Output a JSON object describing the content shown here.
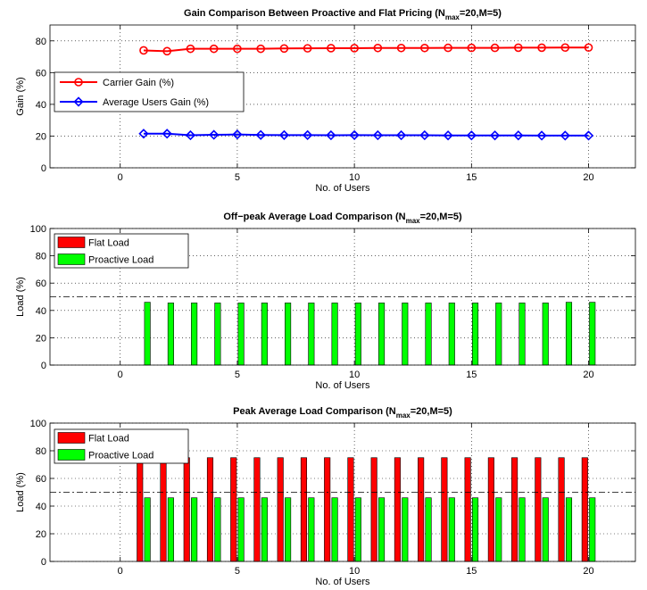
{
  "chart_data": [
    {
      "type": "line",
      "title": "Gain Comparison Between Proactive and Flat Pricing (N",
      "title_sub": "max",
      "title_tail": "=20,M=5)",
      "xlabel": "No. of Users",
      "ylabel": "Gain (%)",
      "xlim": [
        -3,
        22
      ],
      "ylim": [
        0,
        90
      ],
      "xticks": [
        0,
        5,
        10,
        15,
        20
      ],
      "yticks": [
        0,
        20,
        40,
        60,
        80
      ],
      "grid": true,
      "legend_position": "center-left",
      "x": [
        1,
        2,
        3,
        4,
        5,
        6,
        7,
        8,
        9,
        10,
        11,
        12,
        13,
        14,
        15,
        16,
        17,
        18,
        19,
        20
      ],
      "series": [
        {
          "name": "Carrier Gain (%)",
          "color": "#ff0000",
          "marker": "circle",
          "values": [
            74,
            73.5,
            75,
            75,
            75,
            75,
            75.2,
            75.3,
            75.4,
            75.4,
            75.5,
            75.5,
            75.5,
            75.6,
            75.6,
            75.6,
            75.7,
            75.7,
            75.8,
            75.8
          ]
        },
        {
          "name": "Average Users Gain (%)",
          "color": "#0000ff",
          "marker": "diamond",
          "values": [
            21.5,
            21.5,
            20.5,
            20.8,
            21,
            20.7,
            20.6,
            20.6,
            20.5,
            20.6,
            20.5,
            20.5,
            20.5,
            20.4,
            20.4,
            20.4,
            20.4,
            20.3,
            20.3,
            20.3
          ]
        }
      ]
    },
    {
      "type": "bar",
      "title": "Off−peak Average Load Comparison (N",
      "title_sub": "max",
      "title_tail": "=20,M=5)",
      "xlabel": "No. of Users",
      "ylabel": "Load (%)",
      "xlim": [
        -3,
        22
      ],
      "ylim": [
        0,
        100
      ],
      "xticks": [
        0,
        5,
        10,
        15,
        20
      ],
      "yticks": [
        0,
        20,
        40,
        60,
        80,
        100
      ],
      "grid": true,
      "legend_position": "top-left",
      "reference_line": 50,
      "x": [
        1,
        2,
        3,
        4,
        5,
        6,
        7,
        8,
        9,
        10,
        11,
        12,
        13,
        14,
        15,
        16,
        17,
        18,
        19,
        20
      ],
      "series": [
        {
          "name": "Flat Load",
          "color": "#ff0000",
          "values": [
            0,
            0,
            0,
            0,
            0,
            0,
            0,
            0,
            0,
            0,
            0,
            0,
            0,
            0,
            0,
            0,
            0,
            0,
            0,
            0
          ]
        },
        {
          "name": "Proactive Load",
          "color": "#00ff00",
          "values": [
            46,
            45.5,
            45.5,
            45.5,
            45.5,
            45.5,
            45.5,
            45.5,
            45.5,
            45.5,
            45.5,
            45.5,
            45.5,
            45.5,
            45.5,
            45.5,
            45.5,
            45.5,
            46,
            46
          ]
        }
      ]
    },
    {
      "type": "bar",
      "title": "Peak Average Load Comparison (N",
      "title_sub": "max",
      "title_tail": "=20,M=5)",
      "xlabel": "No. of Users",
      "ylabel": "Load (%)",
      "xlim": [
        -3,
        22
      ],
      "ylim": [
        0,
        100
      ],
      "xticks": [
        0,
        5,
        10,
        15,
        20
      ],
      "yticks": [
        0,
        20,
        40,
        60,
        80,
        100
      ],
      "grid": true,
      "legend_position": "top-left",
      "reference_line": 50,
      "x": [
        1,
        2,
        3,
        4,
        5,
        6,
        7,
        8,
        9,
        10,
        11,
        12,
        13,
        14,
        15,
        16,
        17,
        18,
        19,
        20
      ],
      "series": [
        {
          "name": "Flat Load",
          "color": "#ff0000",
          "values": [
            75,
            75,
            75,
            75,
            75,
            75,
            75,
            75,
            75,
            75,
            75,
            75,
            75,
            75,
            75,
            75,
            75,
            75,
            75,
            75
          ]
        },
        {
          "name": "Proactive Load",
          "color": "#00ff00",
          "values": [
            46,
            46,
            46,
            46,
            46,
            46,
            46,
            46,
            46,
            46,
            46,
            46,
            46,
            46,
            46,
            46,
            46,
            46,
            46,
            46
          ]
        }
      ]
    }
  ]
}
